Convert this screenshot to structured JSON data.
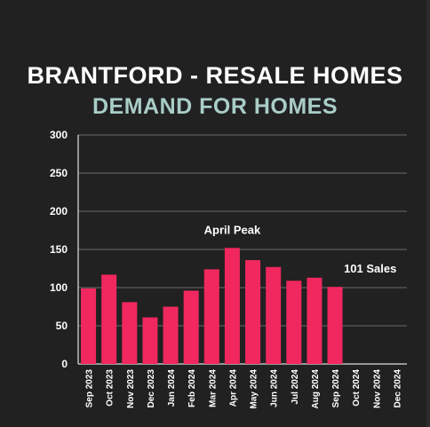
{
  "title": "BRANTFORD - RESALE HOMES",
  "subtitle": "DEMAND FOR HOMES",
  "colors": {
    "background": "#212121",
    "bar": "#f0285f",
    "title": "#ffffff",
    "subtitle": "#a9cdc6",
    "grid": "#6a6a6a"
  },
  "chart_data": {
    "type": "bar",
    "categories": [
      "Sep 2023",
      "Oct 2023",
      "Nov 2023",
      "Dec 2023",
      "Jan 2024",
      "Feb 2024",
      "Mar 2024",
      "Apr 2024",
      "May 2024",
      "Jun 2024",
      "Jul 2024",
      "Aug 2024",
      "Sep 2024",
      "Oct 2024",
      "Nov 2024",
      "Dec 2024"
    ],
    "values": [
      99,
      117,
      81,
      61,
      75,
      96,
      124,
      152,
      136,
      127,
      109,
      113,
      101,
      null,
      null,
      null
    ],
    "ylim": [
      0,
      300
    ],
    "yticks": [
      0,
      50,
      100,
      150,
      200,
      250,
      300
    ],
    "grid": true,
    "annotations": [
      {
        "text": "April Peak",
        "category": "Apr 2024"
      },
      {
        "text": "101 Sales",
        "category": "Sep 2024"
      }
    ]
  }
}
